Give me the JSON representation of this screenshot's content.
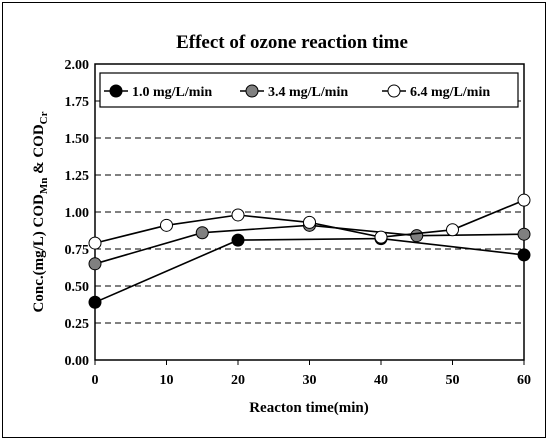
{
  "chart_data": {
    "type": "line",
    "title": "Effect of ozone reaction time",
    "xlabel": "Reacton time(min)",
    "ylabel": {
      "prefix": "Conc.(mg/L) COD",
      "sub1": "Mn",
      "middle": " & COD",
      "sub2": "Cr"
    },
    "xlim": [
      0,
      60
    ],
    "ylim": [
      0,
      2.0
    ],
    "xticks": [
      "0",
      "10",
      "20",
      "30",
      "40",
      "50",
      "60"
    ],
    "yticks": [
      "0.00",
      "0.25",
      "0.50",
      "0.75",
      "1.00",
      "1.25",
      "1.50",
      "1.75",
      "2.00"
    ],
    "grid": "horizontal dashed",
    "legend_position": "top",
    "series": [
      {
        "name": "1.0 mg/L/min",
        "marker_fill": "#000000",
        "x": [
          0,
          20,
          40,
          60
        ],
        "y": [
          0.39,
          0.81,
          0.82,
          0.71
        ]
      },
      {
        "name": "3.4 mg/L/min",
        "marker_fill": "#808080",
        "x": [
          0,
          15,
          30,
          45,
          60
        ],
        "y": [
          0.65,
          0.86,
          0.91,
          0.84,
          0.85
        ]
      },
      {
        "name": "6.4 mg/L/min",
        "marker_fill": "#ffffff",
        "x": [
          0,
          10,
          20,
          30,
          40,
          50,
          60
        ],
        "y": [
          0.79,
          0.91,
          0.98,
          0.93,
          0.83,
          0.88,
          1.08
        ]
      }
    ]
  }
}
